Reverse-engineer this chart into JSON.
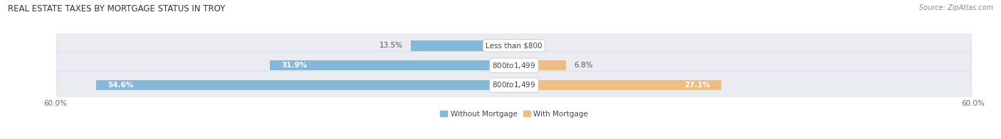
{
  "title": "Real Estate Taxes by Mortgage Status in Troy",
  "source": "Source: ZipAtlas.com",
  "bars": [
    {
      "label": "Less than $800",
      "without_mortgage": 13.5,
      "with_mortgage": 0.0
    },
    {
      "label": "$800 to $1,499",
      "without_mortgage": 31.9,
      "with_mortgage": 6.8
    },
    {
      "label": "$800 to $1,499",
      "without_mortgage": 54.6,
      "with_mortgage": 27.1
    }
  ],
  "x_max": 60.0,
  "x_min": -60.0,
  "color_without_mortgage": "#85b8d8",
  "color_with_mortgage": "#f0bc82",
  "bg_bar_light": "#ebebf2",
  "bg_bar_dark": "#e2e2ec",
  "bg_figure": "#ffffff",
  "title_fontsize": 8.5,
  "label_fontsize": 7.5,
  "tick_fontsize": 7.5,
  "source_fontsize": 7.0,
  "legend_fontsize": 7.5,
  "bar_height": 0.52,
  "center_label_color": "#444444",
  "value_label_color": "#555555",
  "legend_without": "Without Mortgage",
  "legend_with": "With Mortgage"
}
